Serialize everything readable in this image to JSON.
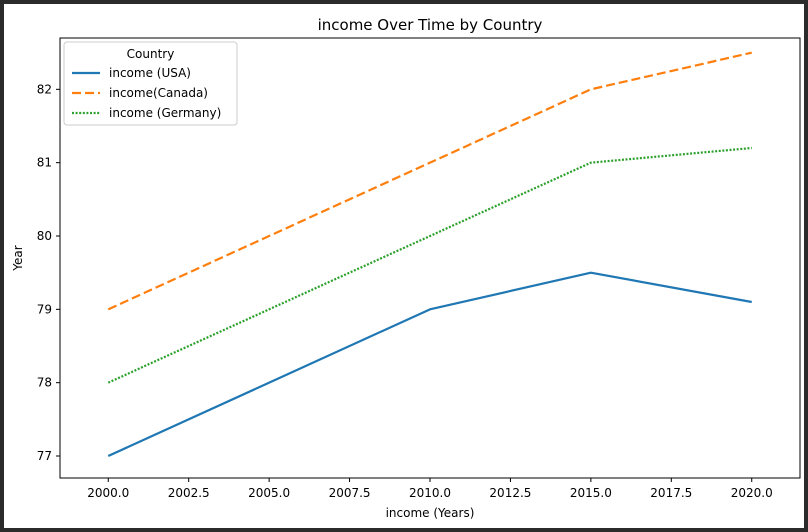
{
  "chart_data": {
    "type": "line",
    "title": "income Over Time by Country",
    "xlabel": "income (Years)",
    "ylabel": "Year",
    "x": [
      2000,
      2010,
      2015,
      2020
    ],
    "xlim": [
      1998.5,
      2021.5
    ],
    "ylim": [
      76.7,
      82.7
    ],
    "x_ticks": [
      "2000.0",
      "2002.5",
      "2005.0",
      "2007.5",
      "2010.0",
      "2012.5",
      "2015.0",
      "2017.5",
      "2020.0"
    ],
    "y_ticks": [
      "77",
      "78",
      "79",
      "80",
      "81",
      "82"
    ],
    "grid": false,
    "legend": {
      "title": "Country",
      "position": "top-left"
    },
    "series": [
      {
        "name": "income (USA)",
        "values": [
          77.0,
          79.0,
          79.5,
          79.1
        ],
        "color": "#1f77b4",
        "style": "solid"
      },
      {
        "name": "income(Canada)",
        "values": [
          79.0,
          81.0,
          82.0,
          82.5
        ],
        "color": "#ff7f0e",
        "style": "dashed"
      },
      {
        "name": "income (Germany)",
        "values": [
          78.0,
          80.0,
          81.0,
          81.2
        ],
        "color": "#2ca02c",
        "style": "dotted"
      }
    ]
  }
}
